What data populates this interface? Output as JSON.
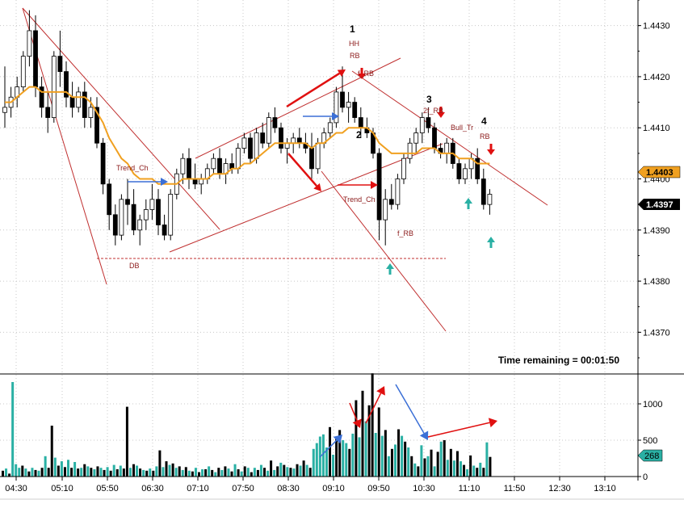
{
  "chart_data": {
    "type": "candlestick",
    "x_tick_labels": [
      "04:30",
      "05:10",
      "05:50",
      "06:30",
      "07:10",
      "07:50",
      "08:30",
      "09:10",
      "09:50",
      "10:30",
      "11:10",
      "11:50",
      "12:30",
      "13:10"
    ],
    "price_axis": {
      "ticks": [
        "1.4430",
        "1.4420",
        "1.4410",
        "1.4400",
        "1.4390",
        "1.4380",
        "1.4370"
      ],
      "range": [
        1.4362,
        1.4435
      ]
    },
    "volume_axis": {
      "ticks": [
        "1000",
        "500",
        "0"
      ],
      "range": [
        0,
        1400
      ]
    },
    "current_price": "1.4397",
    "ma_value": "1.4403",
    "volume_current": "268",
    "status_text": "Time remaining = 00:01:50",
    "colors": {
      "up_candle": "#ffffff",
      "down_candle": "#000000",
      "ma": "#f0a020",
      "annot": "#8b1a1a",
      "trend": "#c03030",
      "up_volume": "#2ab0a4",
      "down_volume": "#000000",
      "ma_badge": "#f0a020",
      "price_badge": "#000000",
      "volume_badge": "#2ab0a4"
    },
    "candles": [
      [
        1.4413,
        1.4422,
        1.441,
        1.4414
      ],
      [
        1.4414,
        1.4418,
        1.4412,
        1.4416
      ],
      [
        1.4416,
        1.442,
        1.4414,
        1.4418
      ],
      [
        1.4418,
        1.4425,
        1.4417,
        1.4424
      ],
      [
        1.4424,
        1.4433,
        1.4422,
        1.4429
      ],
      [
        1.4429,
        1.4432,
        1.4416,
        1.4418
      ],
      [
        1.4418,
        1.442,
        1.4412,
        1.4414
      ],
      [
        1.4414,
        1.4417,
        1.4409,
        1.4412
      ],
      [
        1.4412,
        1.4425,
        1.4411,
        1.4424
      ],
      [
        1.4424,
        1.4429,
        1.4418,
        1.4421
      ],
      [
        1.4421,
        1.4423,
        1.4414,
        1.4416
      ],
      [
        1.4416,
        1.4419,
        1.4412,
        1.4414
      ],
      [
        1.4414,
        1.4418,
        1.4413,
        1.4417
      ],
      [
        1.4417,
        1.4419,
        1.441,
        1.4412
      ],
      [
        1.4412,
        1.4416,
        1.441,
        1.4414
      ],
      [
        1.4414,
        1.4416,
        1.4406,
        1.4407
      ],
      [
        1.4407,
        1.4408,
        1.4397,
        1.4399
      ],
      [
        1.4399,
        1.44,
        1.439,
        1.4393
      ],
      [
        1.4393,
        1.4395,
        1.4387,
        1.4389
      ],
      [
        1.4389,
        1.4397,
        1.4388,
        1.4396
      ],
      [
        1.4396,
        1.44,
        1.4391,
        1.4395
      ],
      [
        1.4395,
        1.4398,
        1.4389,
        1.439
      ],
      [
        1.439,
        1.4393,
        1.4387,
        1.4392
      ],
      [
        1.4392,
        1.4396,
        1.439,
        1.4394
      ],
      [
        1.4394,
        1.4399,
        1.4392,
        1.4396
      ],
      [
        1.4396,
        1.4398,
        1.4389,
        1.4391
      ],
      [
        1.4391,
        1.4393,
        1.4388,
        1.4389
      ],
      [
        1.4389,
        1.4398,
        1.4388,
        1.4397
      ],
      [
        1.4397,
        1.4402,
        1.4396,
        1.4401
      ],
      [
        1.4401,
        1.4405,
        1.4399,
        1.4404
      ],
      [
        1.4404,
        1.4406,
        1.4398,
        1.44
      ],
      [
        1.44,
        1.4403,
        1.4398,
        1.4399
      ],
      [
        1.4399,
        1.4401,
        1.4397,
        1.44
      ],
      [
        1.44,
        1.4403,
        1.4399,
        1.4402
      ],
      [
        1.4402,
        1.4405,
        1.4401,
        1.4404
      ],
      [
        1.4404,
        1.4406,
        1.44,
        1.4401
      ],
      [
        1.4401,
        1.4404,
        1.4399,
        1.4403
      ],
      [
        1.4403,
        1.4405,
        1.4401,
        1.4402
      ],
      [
        1.4402,
        1.4407,
        1.4401,
        1.4406
      ],
      [
        1.4406,
        1.4409,
        1.4405,
        1.4408
      ],
      [
        1.4408,
        1.4409,
        1.4403,
        1.4404
      ],
      [
        1.4404,
        1.441,
        1.4403,
        1.4409
      ],
      [
        1.4409,
        1.4411,
        1.4406,
        1.4407
      ],
      [
        1.4407,
        1.4413,
        1.4406,
        1.4412
      ],
      [
        1.4412,
        1.4414,
        1.4409,
        1.441
      ],
      [
        1.441,
        1.4411,
        1.4405,
        1.4406
      ],
      [
        1.4406,
        1.4408,
        1.4403,
        1.4407
      ],
      [
        1.4407,
        1.4409,
        1.4405,
        1.4408
      ],
      [
        1.4408,
        1.441,
        1.4406,
        1.4407
      ],
      [
        1.4407,
        1.4409,
        1.4405,
        1.4406
      ],
      [
        1.4406,
        1.4409,
        1.44,
        1.4402
      ],
      [
        1.4402,
        1.4408,
        1.4401,
        1.4407
      ],
      [
        1.4407,
        1.441,
        1.4406,
        1.4409
      ],
      [
        1.4409,
        1.4412,
        1.4408,
        1.4411
      ],
      [
        1.4411,
        1.4418,
        1.441,
        1.4417
      ],
      [
        1.4417,
        1.4422,
        1.4413,
        1.4414
      ],
      [
        1.4414,
        1.4417,
        1.4411,
        1.4415
      ],
      [
        1.4415,
        1.4416,
        1.4411,
        1.4412
      ],
      [
        1.4412,
        1.4414,
        1.4408,
        1.441
      ],
      [
        1.441,
        1.4412,
        1.4408,
        1.4409
      ],
      [
        1.4409,
        1.441,
        1.4404,
        1.4405
      ],
      [
        1.4405,
        1.4406,
        1.4388,
        1.4392
      ],
      [
        1.4392,
        1.4398,
        1.4387,
        1.4396
      ],
      [
        1.4396,
        1.4399,
        1.4394,
        1.4395
      ],
      [
        1.4395,
        1.4401,
        1.4394,
        1.44
      ],
      [
        1.44,
        1.4405,
        1.4399,
        1.4404
      ],
      [
        1.4404,
        1.4408,
        1.4403,
        1.4407
      ],
      [
        1.4407,
        1.441,
        1.4405,
        1.4409
      ],
      [
        1.4409,
        1.4413,
        1.4407,
        1.4412
      ],
      [
        1.4412,
        1.4414,
        1.4409,
        1.441
      ],
      [
        1.441,
        1.4411,
        1.4405,
        1.4406
      ],
      [
        1.4406,
        1.4407,
        1.4404,
        1.4405
      ],
      [
        1.4405,
        1.4408,
        1.4403,
        1.4407
      ],
      [
        1.4407,
        1.4408,
        1.4402,
        1.4403
      ],
      [
        1.4403,
        1.4404,
        1.4399,
        1.44
      ],
      [
        1.44,
        1.4403,
        1.4399,
        1.4402
      ],
      [
        1.4402,
        1.4405,
        1.44,
        1.4404
      ],
      [
        1.4404,
        1.4406,
        1.4399,
        1.44
      ],
      [
        1.44,
        1.4402,
        1.4394,
        1.4395
      ],
      [
        1.4395,
        1.4398,
        1.4393,
        1.4397
      ]
    ],
    "ma": [
      1.4415,
      1.4415,
      1.4416,
      1.4417,
      1.4418,
      1.4418,
      1.4417,
      1.4417,
      1.4417,
      1.4417,
      1.4417,
      1.4416,
      1.4416,
      1.4416,
      1.4415,
      1.4413,
      1.4411,
      1.4408,
      1.4406,
      1.4404,
      1.4403,
      1.4401,
      1.44,
      1.44,
      1.44,
      1.4399,
      1.4399,
      1.4399,
      1.4399,
      1.44,
      1.44,
      1.44,
      1.44,
      1.44,
      1.4401,
      1.4401,
      1.4401,
      1.4402,
      1.4402,
      1.4403,
      1.4403,
      1.4404,
      1.4405,
      1.4406,
      1.4407,
      1.4407,
      1.4407,
      1.4407,
      1.4407,
      1.4407,
      1.4406,
      1.4407,
      1.4407,
      1.4408,
      1.4409,
      1.4409,
      1.441,
      1.441,
      1.441,
      1.441,
      1.4409,
      1.4407,
      1.4406,
      1.4405,
      1.4405,
      1.4405,
      1.4405,
      1.4405,
      1.4406,
      1.4406,
      1.4406,
      1.4405,
      1.4405,
      1.4405,
      1.4404,
      1.4404,
      1.4404,
      1.4403,
      1.4403,
      1.4403
    ],
    "volume": [
      80,
      110,
      40,
      1300,
      170,
      120,
      150,
      110,
      70,
      120,
      90,
      80,
      120,
      280,
      120,
      700,
      260,
      150,
      210,
      130,
      230,
      120,
      200,
      110,
      120,
      170,
      140,
      120,
      100,
      140,
      120,
      90,
      130,
      80,
      160,
      100,
      150,
      110,
      960,
      120,
      170,
      150,
      110,
      90,
      80,
      110,
      80,
      140,
      360,
      130,
      210,
      160,
      180,
      120,
      140,
      90,
      130,
      80,
      70,
      120,
      60,
      100,
      100,
      140,
      90,
      60,
      120,
      90,
      140,
      110,
      70,
      170,
      100,
      70,
      140,
      120,
      60,
      120,
      90,
      160,
      120,
      80,
      220,
      90,
      140,
      190,
      160,
      130,
      120,
      110,
      170,
      150,
      220,
      160,
      120,
      380,
      460,
      550,
      580,
      400,
      680,
      300,
      520,
      640,
      500,
      460,
      380,
      590,
      1050,
      540,
      1180,
      760,
      980,
      1420,
      600,
      950,
      560,
      640,
      280,
      380,
      440,
      650,
      560,
      480,
      400,
      280,
      180,
      140,
      430,
      250,
      280,
      370,
      140,
      340,
      480,
      500,
      230,
      380,
      220,
      350,
      210,
      160,
      100,
      290,
      150,
      120,
      190,
      120,
      470,
      270
    ],
    "volume_up": [
      0,
      1,
      0,
      1,
      1,
      1,
      0,
      1,
      0,
      1,
      0,
      1,
      0,
      1,
      0,
      0,
      1,
      0,
      1,
      0,
      1,
      0,
      1,
      0,
      1,
      0,
      1,
      0,
      1,
      0,
      1,
      0,
      1,
      0,
      1,
      0,
      1,
      0,
      0,
      1,
      0,
      1,
      0,
      1,
      0,
      1,
      0,
      1,
      0,
      1,
      0,
      1,
      0,
      1,
      0,
      1,
      0,
      1,
      0,
      1,
      0,
      1,
      0,
      1,
      0,
      1,
      0,
      1,
      0,
      1,
      0,
      1,
      0,
      1,
      0,
      1,
      0,
      1,
      0,
      1,
      0,
      1,
      0,
      1,
      0,
      1,
      0,
      1,
      0,
      1,
      0,
      1,
      0,
      1,
      0,
      1,
      1,
      1,
      1,
      1,
      0,
      1,
      0,
      0,
      1,
      1,
      0,
      1,
      0,
      1,
      0,
      1,
      0,
      0,
      1,
      0,
      1,
      0,
      1,
      0,
      1,
      0,
      1,
      0,
      1,
      0,
      1,
      0,
      1,
      0,
      1,
      0,
      1,
      0,
      1,
      0,
      1,
      0,
      1,
      0,
      1,
      0,
      1,
      0,
      1,
      0,
      1,
      0,
      1,
      0
    ],
    "annotations": {
      "trend_ch_1": "Trend_Ch",
      "db": "DB",
      "num_1": "1",
      "hh": "HH",
      "rb_1": "RB",
      "f_rb_1": "f_RB",
      "num_2": "2",
      "trend_ch_2": "Trend_Ch",
      "f_rb_2": "f_RB",
      "num_3": "3",
      "two_f_rb": "2f_RB",
      "bull_tr": "Bull_Tr",
      "num_4": "4",
      "rb_2": "RB"
    }
  }
}
